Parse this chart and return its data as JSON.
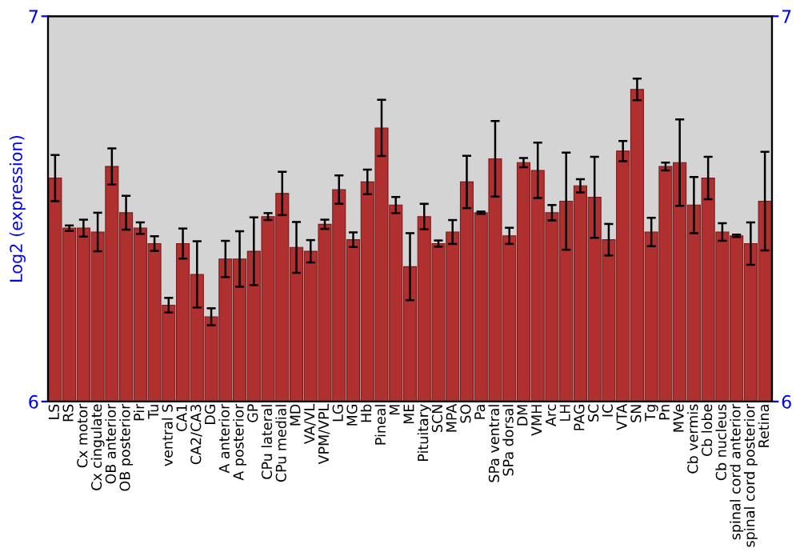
{
  "chart_data": {
    "type": "bar",
    "ylabel": "Log2 (expression)",
    "categories": [
      "LS",
      "RS",
      "Cx motor",
      "Cx cingulate",
      "OB anterior",
      "OB posterior",
      "Pir",
      "Tu",
      "ventral S",
      "CA1",
      "CA2/CA3",
      "DG",
      "A anterior",
      "A posterior",
      "GP",
      "CPu lateral",
      "CPu medial",
      "MD",
      "VA/VL",
      "VPM/VPL",
      "LG",
      "MG",
      "Hb",
      "Pineal",
      "M",
      "ME",
      "Pituitary",
      "SCN",
      "MPA",
      "SO",
      "Pa",
      "SPa ventral",
      "SPa dorsal",
      "DM",
      "VMH",
      "Arc",
      "LH",
      "PAG",
      "SC",
      "IC",
      "VTA",
      "SN",
      "Tg",
      "Pn",
      "MVe",
      "Cb vermis",
      "Cb lobe",
      "Cb nucleus",
      "spinal cord anterior",
      "spinal cord posterior",
      "Retina"
    ],
    "series": [
      {
        "color": "#b03030",
        "values": [
          6.58,
          6.45,
          6.45,
          6.44,
          6.61,
          6.49,
          6.45,
          6.41,
          6.25,
          6.41,
          6.33,
          6.22,
          6.37,
          6.37,
          6.39,
          6.48,
          6.54,
          6.4,
          6.39,
          6.46,
          6.55,
          6.42,
          6.57,
          6.71,
          6.51,
          6.35,
          6.48,
          6.41,
          6.44,
          6.57,
          6.49,
          6.63,
          6.43,
          6.62,
          6.6,
          6.49,
          6.52,
          6.56,
          6.53,
          6.42,
          6.65,
          6.81,
          6.44,
          6.61,
          6.62,
          6.51,
          6.58,
          6.44,
          6.43,
          6.41,
          6.52
        ],
        "errors": [
          0.06,
          0.007,
          0.022,
          0.05,
          0.047,
          0.044,
          0.015,
          0.019,
          0.019,
          0.039,
          0.086,
          0.022,
          0.047,
          0.072,
          0.088,
          0.009,
          0.056,
          0.066,
          0.029,
          0.012,
          0.037,
          0.019,
          0.032,
          0.073,
          0.021,
          0.087,
          0.033,
          0.008,
          0.031,
          0.068,
          0.003,
          0.098,
          0.021,
          0.012,
          0.072,
          0.02,
          0.126,
          0.017,
          0.105,
          0.041,
          0.026,
          0.028,
          0.037,
          0.01,
          0.112,
          0.073,
          0.055,
          0.023,
          0.003,
          0.055,
          0.128
        ]
      }
    ],
    "ylim": [
      6,
      7
    ],
    "yticks": [
      6,
      7
    ],
    "y2lim": [
      6,
      7
    ],
    "y2ticks": [
      6,
      7
    ],
    "grid": false,
    "legend": false
  }
}
